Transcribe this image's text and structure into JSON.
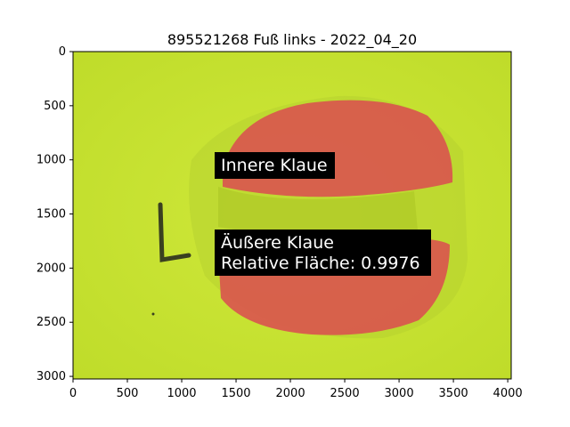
{
  "figure": {
    "title": "895521268 Fuß links - 2022_04_20"
  },
  "axes": {
    "x_ticks": [
      "0",
      "500",
      "1000",
      "1500",
      "2000",
      "2500",
      "3000",
      "3500",
      "4000"
    ],
    "y_ticks": [
      "0",
      "500",
      "1000",
      "1500",
      "2000",
      "2500",
      "3000"
    ]
  },
  "image_content": {
    "background_color": "#c8e330",
    "segment_color": "#d9534f",
    "marker_letter": "L"
  },
  "annotations": {
    "inner": "Innere Klaue",
    "outer_line1": "Äußere Klaue",
    "outer_line2": "Relative Fläche: 0.9976"
  }
}
